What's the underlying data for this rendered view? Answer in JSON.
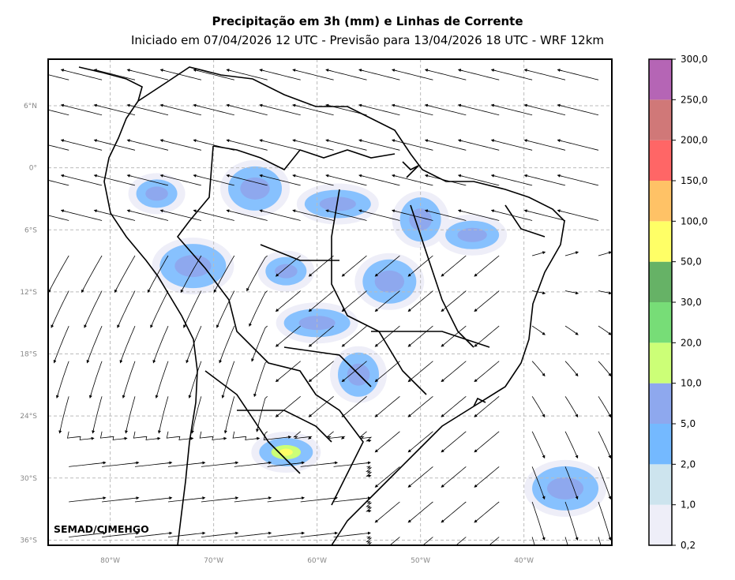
{
  "header": {
    "title": "Precipitação em 3h (mm) e Linhas de Corrente",
    "subtitle": "Iniciado em 07/04/2026 12 UTC - Previsão para 13/04/2026 18 UTC - WRF 12km"
  },
  "credit": "SEMAD/CIMEHGO",
  "chart_data": {
    "type": "heatmap",
    "map_extent": {
      "lon": [
        -86,
        -31.5
      ],
      "lat": [
        -36.5,
        10.5
      ]
    },
    "grid": true,
    "lat_ticks": [
      "6°N",
      "0°",
      "6°S",
      "12°S",
      "18°S",
      "24°S",
      "30°S",
      "36°S"
    ],
    "lat_values": [
      6,
      0,
      -6,
      -12,
      -18,
      -24,
      -30,
      -36
    ],
    "lon_ticks": [
      "80°W",
      "70°W",
      "60°W",
      "50°W",
      "40°W"
    ],
    "lon_values": [
      -80,
      -70,
      -60,
      -50,
      -40
    ],
    "colorbar": {
      "labels": [
        "0,2",
        "1,0",
        "2,0",
        "5,0",
        "10,0",
        "20,0",
        "30,0",
        "50,0",
        "100,0",
        "150,0",
        "200,0",
        "250,0",
        "300,0"
      ],
      "colors": [
        "#eeeef8",
        "#cde4ee",
        "#74b9ff",
        "#8ea8ee",
        "#ccff77",
        "#77dd77",
        "#66b266",
        "#ffff66",
        "#ffc266",
        "#ff6666",
        "#d07878",
        "#b565b5"
      ]
    },
    "precip_areas": [
      {
        "lon": -75.5,
        "lat": -2.5,
        "level": 3
      },
      {
        "lon": -66,
        "lat": -2,
        "level": 3
      },
      {
        "lon": -58,
        "lat": -3.5,
        "level": 3
      },
      {
        "lon": -50,
        "lat": -5,
        "level": 3
      },
      {
        "lon": -45,
        "lat": -6.5,
        "level": 3
      },
      {
        "lon": -72,
        "lat": -9.5,
        "level": 3
      },
      {
        "lon": -63,
        "lat": -10,
        "level": 3
      },
      {
        "lon": -53,
        "lat": -11,
        "level": 3
      },
      {
        "lon": -60,
        "lat": -15,
        "level": 3
      },
      {
        "lon": -56,
        "lat": -20,
        "level": 3
      },
      {
        "lon": -63,
        "lat": -27.5,
        "level": 4
      },
      {
        "lon": -36,
        "lat": -31,
        "level": 3
      }
    ]
  }
}
